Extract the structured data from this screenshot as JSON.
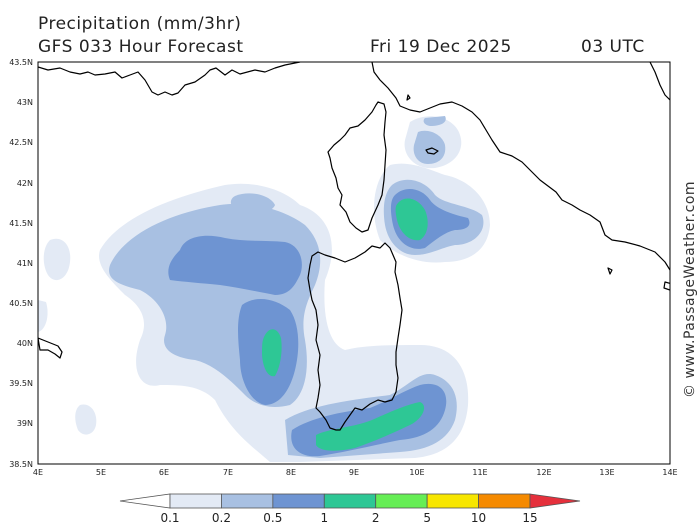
{
  "header": {
    "title": "Precipitation (mm/3hr)",
    "forecast": "GFS 033 Hour Forecast",
    "date": "Fri 19 Dec 2025",
    "time": "03 UTC"
  },
  "credit": "© www.PassageWeather.com",
  "latitude_ticks": [
    "43.5N",
    "43N",
    "42.5N",
    "42N",
    "41.5N",
    "41N",
    "40.5N",
    "40N",
    "39.5N",
    "39N",
    "38.5N"
  ],
  "longitude_ticks": [
    "4E",
    "5E",
    "6E",
    "7E",
    "8E",
    "9E",
    "10E",
    "11E",
    "12E",
    "13E",
    "14E"
  ],
  "legend": {
    "labels": [
      "0.1",
      "0.2",
      "0.5",
      "1",
      "2",
      "5",
      "10",
      "15"
    ],
    "colors": [
      "#ffffff",
      "#e3eaf5",
      "#a8c0e2",
      "#6e94d2",
      "#2ec795",
      "#66ee55",
      "#f7e600",
      "#f58a00",
      "#e5303c"
    ]
  }
}
